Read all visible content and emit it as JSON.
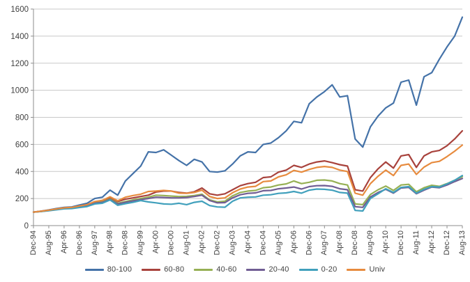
{
  "chart_data": {
    "type": "line",
    "title": "",
    "xlabel": "",
    "ylabel": "",
    "ylim": [
      0,
      1600
    ],
    "y_ticks": [
      0,
      200,
      400,
      600,
      800,
      1000,
      1200,
      1400,
      1600
    ],
    "grid": "horizontal",
    "legend_position": "bottom",
    "x_start": "Dec-94",
    "x_end": "Aug-13",
    "x_sample_interval_months": 4,
    "x_ticks_every_n_samples": 2,
    "x_tick_labels": [
      "Dec-94",
      "Aug-95",
      "Apr-96",
      "Dec-96",
      "Aug-97",
      "Apr-98",
      "Dec-98",
      "Aug-99",
      "Apr-00",
      "Dec-00",
      "Aug-01",
      "Apr-02",
      "Dec-02",
      "Aug-03",
      "Apr-04",
      "Dec-04",
      "Aug-05",
      "Apr-06",
      "Dec-06",
      "Aug-07",
      "Apr-08",
      "Dec-08",
      "Aug-09",
      "Apr-10",
      "Dec-10",
      "Aug-11",
      "Apr-12",
      "Dec-12",
      "Aug-13"
    ],
    "series": [
      {
        "name": "80-100",
        "color": "#4472A8",
        "values": [
          100,
          107,
          116,
          126,
          135,
          138,
          152,
          165,
          200,
          210,
          262,
          225,
          330,
          385,
          440,
          545,
          540,
          560,
          520,
          480,
          445,
          490,
          470,
          400,
          395,
          405,
          455,
          515,
          545,
          540,
          600,
          610,
          650,
          700,
          770,
          760,
          900,
          950,
          990,
          1040,
          950,
          960,
          640,
          580,
          730,
          810,
          870,
          905,
          1060,
          1075,
          890,
          1100,
          1130,
          1230,
          1320,
          1400,
          1540
        ]
      },
      {
        "name": "60-80",
        "color": "#A8423C",
        "values": [
          100,
          106,
          114,
          122,
          130,
          134,
          143,
          152,
          172,
          180,
          205,
          178,
          195,
          205,
          215,
          225,
          248,
          255,
          255,
          245,
          240,
          250,
          278,
          235,
          225,
          235,
          265,
          295,
          310,
          320,
          355,
          360,
          395,
          410,
          445,
          430,
          455,
          470,
          478,
          465,
          450,
          440,
          265,
          255,
          355,
          420,
          470,
          425,
          515,
          525,
          430,
          515,
          545,
          555,
          590,
          640,
          700
        ]
      },
      {
        "name": "40-60",
        "color": "#96B054",
        "values": [
          100,
          105,
          112,
          120,
          128,
          131,
          140,
          148,
          168,
          175,
          196,
          165,
          178,
          190,
          200,
          210,
          225,
          222,
          218,
          215,
          216,
          222,
          232,
          190,
          175,
          180,
          220,
          245,
          255,
          260,
          280,
          285,
          300,
          308,
          330,
          310,
          320,
          335,
          337,
          330,
          310,
          300,
          160,
          155,
          230,
          265,
          292,
          260,
          300,
          305,
          250,
          280,
          298,
          290,
          310,
          335,
          362
        ]
      },
      {
        "name": "20-40",
        "color": "#705D93",
        "values": [
          100,
          105,
          111,
          119,
          126,
          129,
          138,
          146,
          165,
          172,
          192,
          160,
          172,
          182,
          192,
          200,
          210,
          208,
          205,
          205,
          208,
          215,
          225,
          185,
          168,
          170,
          205,
          228,
          238,
          242,
          258,
          260,
          272,
          278,
          285,
          270,
          288,
          295,
          296,
          290,
          272,
          265,
          140,
          135,
          212,
          245,
          268,
          240,
          278,
          282,
          235,
          262,
          285,
          280,
          300,
          325,
          348
        ]
      },
      {
        "name": "0-20",
        "color": "#41A0BC",
        "values": [
          100,
          104,
          110,
          117,
          124,
          126,
          134,
          141,
          160,
          165,
          190,
          150,
          162,
          172,
          185,
          175,
          168,
          160,
          158,
          165,
          155,
          172,
          180,
          148,
          138,
          136,
          180,
          205,
          210,
          212,
          225,
          228,
          238,
          242,
          252,
          240,
          262,
          270,
          268,
          262,
          245,
          240,
          112,
          108,
          200,
          235,
          272,
          245,
          282,
          288,
          240,
          268,
          288,
          285,
          308,
          335,
          370
        ]
      },
      {
        "name": "Univ",
        "color": "#E78B3E",
        "values": [
          100,
          106,
          114,
          123,
          131,
          135,
          145,
          155,
          178,
          187,
          213,
          183,
          210,
          222,
          232,
          252,
          255,
          260,
          255,
          240,
          238,
          245,
          262,
          215,
          200,
          205,
          243,
          270,
          285,
          290,
          325,
          330,
          360,
          375,
          408,
          395,
          415,
          430,
          437,
          430,
          410,
          400,
          240,
          225,
          310,
          365,
          410,
          370,
          445,
          455,
          378,
          432,
          465,
          475,
          510,
          550,
          595
        ]
      }
    ]
  },
  "style": {
    "grid_color": "#C8C8C8",
    "axis_color": "#8E8E8E",
    "text_color": "#3F3F3F",
    "background": "#FFFFFF"
  }
}
